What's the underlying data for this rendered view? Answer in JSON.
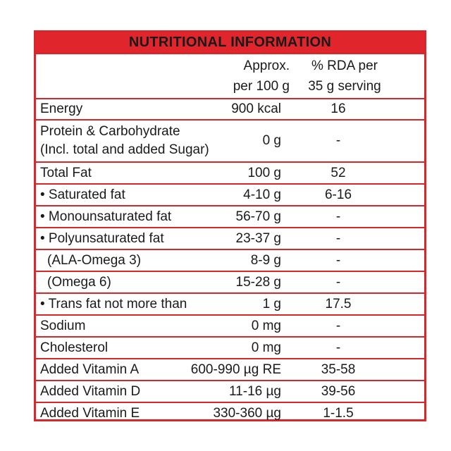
{
  "title": "NUTRITIONAL INFORMATION",
  "columns": {
    "amount": "Approx.\nper 100 g",
    "rda": "% RDA per\n35 g serving"
  },
  "rows": [
    {
      "name": "Energy",
      "amount": "900 kcal",
      "rda": "16"
    },
    {
      "name": "Protein & Carbohydrate\n(Incl. total and added Sugar)",
      "amount": "0 g",
      "rda": "-"
    },
    {
      "name": "Total Fat",
      "amount": "100 g",
      "rda": "52"
    },
    {
      "name": "• Saturated fat",
      "amount": "4-10 g",
      "rda": "6-16"
    },
    {
      "name": "• Monounsaturated fat",
      "amount": "56-70 g",
      "rda": "-"
    },
    {
      "name": "• Polyunsaturated fat",
      "amount": "23-37 g",
      "rda": "-"
    },
    {
      "name": "(ALA-Omega 3)",
      "amount": "8-9 g",
      "rda": "-"
    },
    {
      "name": "(Omega 6)",
      "amount": "15-28 g",
      "rda": "-"
    },
    {
      "name": "• Trans fat not more than",
      "amount": "1 g",
      "rda": "17.5"
    },
    {
      "name": "Sodium",
      "amount": "0 mg",
      "rda": "-"
    },
    {
      "name": "Cholesterol",
      "amount": "0 mg",
      "rda": "-"
    },
    {
      "name": "Added Vitamin A",
      "amount": "600-990 µg RE",
      "rda": "35-58"
    },
    {
      "name": "Added Vitamin D",
      "amount": "11-16 µg",
      "rda": "39-56"
    },
    {
      "name": "Added Vitamin E",
      "amount": "330-360 µg",
      "rda": "1-1.5"
    }
  ],
  "colors": {
    "border": "#d9262b",
    "header_bg": "#e0262c"
  }
}
